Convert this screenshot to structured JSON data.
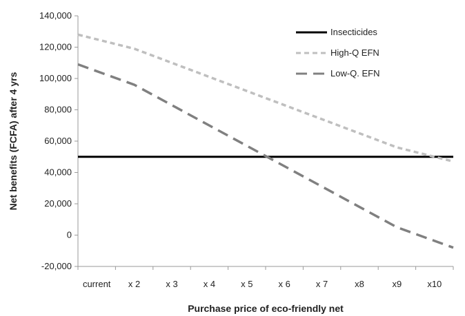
{
  "chart_data": {
    "type": "line",
    "title": "",
    "xlabel": "Purchase price of eco-friendly net",
    "ylabel": "Net benefits (FCFA) after 4 yrs",
    "categories": [
      "current",
      "x 2",
      "x 3",
      "x 4",
      "x 5",
      "x 6",
      "x 7",
      "x8",
      "x9",
      "x10"
    ],
    "ylim": [
      -20000,
      140000
    ],
    "yticks": [
      -20000,
      0,
      20000,
      40000,
      60000,
      80000,
      100000,
      120000,
      140000
    ],
    "ytick_labels": [
      "-20,000",
      "0",
      "20,000",
      "40,000",
      "60,000",
      "80,000",
      "100,000",
      "120,000",
      "140,000"
    ],
    "grid": false,
    "legend_position": "top-right",
    "series": [
      {
        "name": "Insecticides",
        "values": [
          50000,
          50000,
          50000,
          50000,
          50000,
          50000,
          50000,
          50000,
          50000,
          50000
        ],
        "color": "#000000",
        "dash": "solid"
      },
      {
        "name": "High-Q EFN",
        "values": [
          128000,
          119000,
          110000,
          101000,
          92000,
          83000,
          74000,
          65000,
          56000,
          47000
        ],
        "color": "#bfbfbf",
        "dash": "short-dash"
      },
      {
        "name": "Low-Q. EFN",
        "values": [
          109000,
          96000,
          83000,
          70000,
          57000,
          44000,
          31000,
          18000,
          5000,
          -8000
        ],
        "color": "#808080",
        "dash": "long-dash"
      }
    ]
  }
}
